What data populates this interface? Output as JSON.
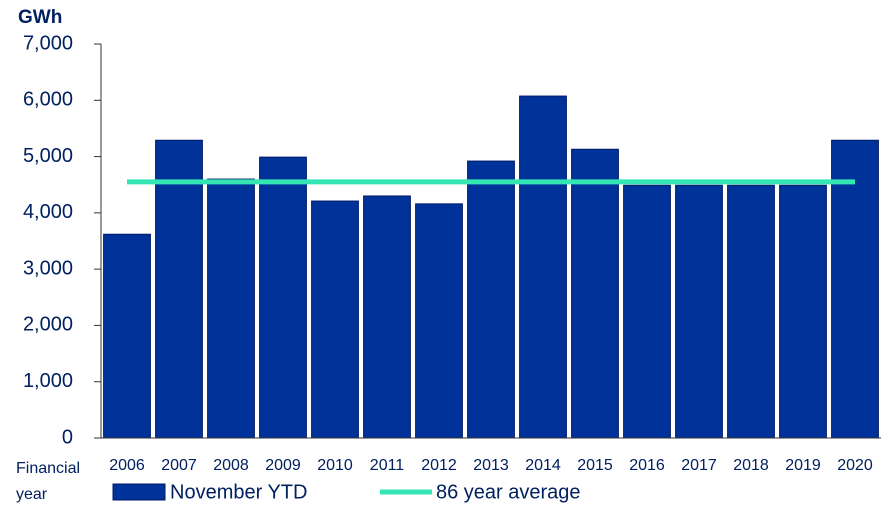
{
  "chart_data": {
    "type": "bar",
    "y_label": "GWh",
    "x_label": "Financial year",
    "categories": [
      "2006",
      "2007",
      "2008",
      "2009",
      "2010",
      "2011",
      "2012",
      "2013",
      "2014",
      "2015",
      "2016",
      "2017",
      "2018",
      "2019",
      "2020"
    ],
    "series": [
      {
        "name": "November YTD",
        "type": "bar",
        "color": "#003399",
        "values": [
          3620,
          5290,
          4600,
          4990,
          4210,
          4300,
          4160,
          4920,
          6075,
          5130,
          4490,
          4490,
          4490,
          4490,
          5290
        ]
      },
      {
        "name": "86 year average",
        "type": "line",
        "color": "#33e6b4",
        "values": [
          4550,
          4550,
          4550,
          4550,
          4550,
          4550,
          4550,
          4550,
          4550,
          4550,
          4550,
          4550,
          4550,
          4550,
          4550
        ]
      }
    ],
    "ylim": [
      0,
      7000
    ],
    "yticks": [
      0,
      {
        "value": 1000,
        "label": "1,000"
      },
      {
        "value": 2000,
        "label": "2,000"
      },
      {
        "value": 3000,
        "label": "3,000"
      },
      {
        "value": 4000,
        "label": "4,000"
      },
      {
        "value": 5000,
        "label": "5,000"
      },
      {
        "value": 6000,
        "label": "6,000"
      },
      {
        "value": 7000,
        "label": "7,000"
      }
    ]
  }
}
